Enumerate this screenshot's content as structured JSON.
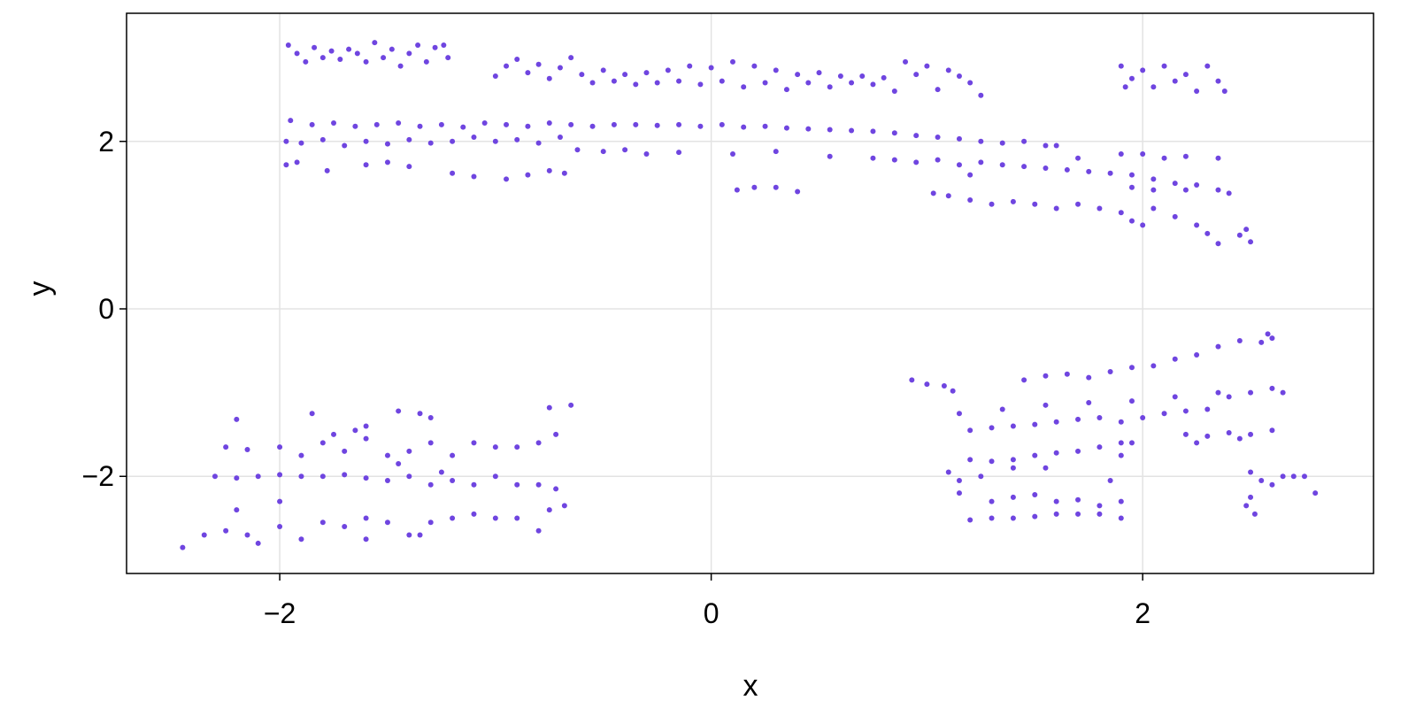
{
  "chart_data": {
    "type": "scatter",
    "title": "",
    "xlabel": "x",
    "ylabel": "y",
    "xlim": [
      -2.71,
      3.07
    ],
    "ylim": [
      -3.16,
      3.53
    ],
    "xticks": [
      -2,
      0,
      2
    ],
    "yticks": [
      -2,
      0,
      2
    ],
    "xtick_labels": [
      "−2",
      "0",
      "2"
    ],
    "ytick_labels": [
      "−2",
      "0",
      "2"
    ],
    "grid": true,
    "marker_color": "#6f45e0",
    "points": [
      [
        -1.96,
        3.15
      ],
      [
        -1.92,
        3.05
      ],
      [
        -1.88,
        2.95
      ],
      [
        -1.84,
        3.12
      ],
      [
        -1.8,
        3.0
      ],
      [
        -1.76,
        3.08
      ],
      [
        -1.72,
        2.98
      ],
      [
        -1.68,
        3.1
      ],
      [
        -1.64,
        3.05
      ],
      [
        -1.6,
        2.95
      ],
      [
        -1.56,
        3.18
      ],
      [
        -1.52,
        3.0
      ],
      [
        -1.48,
        3.1
      ],
      [
        -1.44,
        2.9
      ],
      [
        -1.4,
        3.05
      ],
      [
        -1.36,
        3.15
      ],
      [
        -1.32,
        2.95
      ],
      [
        -1.28,
        3.12
      ],
      [
        -1.24,
        3.15
      ],
      [
        -1.22,
        3.0
      ],
      [
        -1.0,
        2.78
      ],
      [
        -0.95,
        2.9
      ],
      [
        -0.9,
        2.98
      ],
      [
        -0.85,
        2.82
      ],
      [
        -0.8,
        2.92
      ],
      [
        -0.75,
        2.75
      ],
      [
        -0.7,
        2.88
      ],
      [
        -0.65,
        3.0
      ],
      [
        -0.6,
        2.8
      ],
      [
        -0.55,
        2.7
      ],
      [
        -0.5,
        2.85
      ],
      [
        -0.45,
        2.72
      ],
      [
        -0.4,
        2.8
      ],
      [
        -0.35,
        2.68
      ],
      [
        -0.3,
        2.82
      ],
      [
        -0.25,
        2.7
      ],
      [
        -0.2,
        2.85
      ],
      [
        -0.15,
        2.72
      ],
      [
        -0.1,
        2.9
      ],
      [
        -0.05,
        2.68
      ],
      [
        0.0,
        2.88
      ],
      [
        0.05,
        2.72
      ],
      [
        0.1,
        2.95
      ],
      [
        0.15,
        2.65
      ],
      [
        0.2,
        2.9
      ],
      [
        0.25,
        2.7
      ],
      [
        0.3,
        2.85
      ],
      [
        0.35,
        2.62
      ],
      [
        0.4,
        2.8
      ],
      [
        0.45,
        2.7
      ],
      [
        0.5,
        2.82
      ],
      [
        0.55,
        2.65
      ],
      [
        0.6,
        2.78
      ],
      [
        0.65,
        2.7
      ],
      [
        0.7,
        2.78
      ],
      [
        0.75,
        2.68
      ],
      [
        0.8,
        2.76
      ],
      [
        0.85,
        2.6
      ],
      [
        0.9,
        2.95
      ],
      [
        0.95,
        2.8
      ],
      [
        1.0,
        2.9
      ],
      [
        1.05,
        2.62
      ],
      [
        1.1,
        2.85
      ],
      [
        1.15,
        2.78
      ],
      [
        1.2,
        2.7
      ],
      [
        1.25,
        2.55
      ],
      [
        1.9,
        2.9
      ],
      [
        1.95,
        2.75
      ],
      [
        2.0,
        2.85
      ],
      [
        2.05,
        2.65
      ],
      [
        2.1,
        2.9
      ],
      [
        2.15,
        2.72
      ],
      [
        2.2,
        2.8
      ],
      [
        2.25,
        2.6
      ],
      [
        2.3,
        2.9
      ],
      [
        2.35,
        2.72
      ],
      [
        2.38,
        2.6
      ],
      [
        1.92,
        2.65
      ],
      [
        -1.95,
        2.25
      ],
      [
        -1.85,
        2.2
      ],
      [
        -1.75,
        2.22
      ],
      [
        -1.65,
        2.18
      ],
      [
        -1.55,
        2.2
      ],
      [
        -1.45,
        2.22
      ],
      [
        -1.35,
        2.18
      ],
      [
        -1.25,
        2.2
      ],
      [
        -1.15,
        2.17
      ],
      [
        -1.05,
        2.22
      ],
      [
        -0.95,
        2.2
      ],
      [
        -0.85,
        2.18
      ],
      [
        -0.75,
        2.22
      ],
      [
        -0.65,
        2.2
      ],
      [
        -0.55,
        2.18
      ],
      [
        -0.45,
        2.2
      ],
      [
        -0.35,
        2.2
      ],
      [
        -0.25,
        2.19
      ],
      [
        -0.15,
        2.2
      ],
      [
        -0.05,
        2.18
      ],
      [
        0.05,
        2.2
      ],
      [
        0.15,
        2.17
      ],
      [
        0.25,
        2.18
      ],
      [
        0.35,
        2.16
      ],
      [
        0.45,
        2.15
      ],
      [
        0.55,
        2.14
      ],
      [
        0.65,
        2.13
      ],
      [
        0.75,
        2.12
      ],
      [
        0.85,
        2.1
      ],
      [
        0.95,
        2.07
      ],
      [
        1.05,
        2.05
      ],
      [
        1.15,
        2.03
      ],
      [
        1.25,
        2.0
      ],
      [
        1.35,
        1.98
      ],
      [
        1.45,
        2.0
      ],
      [
        1.55,
        1.95
      ],
      [
        -1.97,
        2.0
      ],
      [
        -1.9,
        1.98
      ],
      [
        -1.8,
        2.02
      ],
      [
        -1.7,
        1.95
      ],
      [
        -1.6,
        2.0
      ],
      [
        -1.5,
        1.97
      ],
      [
        -1.4,
        2.02
      ],
      [
        -1.3,
        1.98
      ],
      [
        -1.2,
        2.0
      ],
      [
        -1.1,
        2.05
      ],
      [
        -1.0,
        2.0
      ],
      [
        -0.9,
        2.02
      ],
      [
        -0.8,
        1.98
      ],
      [
        -0.7,
        2.05
      ],
      [
        -0.62,
        1.9
      ],
      [
        -0.5,
        1.88
      ],
      [
        -0.4,
        1.9
      ],
      [
        -0.3,
        1.85
      ],
      [
        -0.15,
        1.87
      ],
      [
        0.1,
        1.85
      ],
      [
        0.3,
        1.88
      ],
      [
        0.55,
        1.82
      ],
      [
        -1.97,
        1.72
      ],
      [
        -1.92,
        1.75
      ],
      [
        -1.78,
        1.65
      ],
      [
        -1.6,
        1.72
      ],
      [
        -1.5,
        1.75
      ],
      [
        -1.4,
        1.7
      ],
      [
        -1.2,
        1.62
      ],
      [
        -1.1,
        1.58
      ],
      [
        -0.95,
        1.55
      ],
      [
        -0.85,
        1.6
      ],
      [
        -0.75,
        1.65
      ],
      [
        -0.68,
        1.62
      ],
      [
        0.12,
        1.42
      ],
      [
        0.2,
        1.45
      ],
      [
        0.3,
        1.45
      ],
      [
        0.4,
        1.4
      ],
      [
        0.75,
        1.8
      ],
      [
        0.85,
        1.78
      ],
      [
        0.95,
        1.75
      ],
      [
        1.05,
        1.78
      ],
      [
        1.15,
        1.72
      ],
      [
        1.25,
        1.75
      ],
      [
        1.35,
        1.72
      ],
      [
        1.45,
        1.7
      ],
      [
        1.55,
        1.68
      ],
      [
        1.65,
        1.66
      ],
      [
        1.75,
        1.64
      ],
      [
        1.85,
        1.62
      ],
      [
        1.95,
        1.6
      ],
      [
        2.05,
        1.55
      ],
      [
        2.15,
        1.5
      ],
      [
        2.25,
        1.48
      ],
      [
        2.35,
        1.42
      ],
      [
        2.4,
        1.38
      ],
      [
        1.9,
        1.85
      ],
      [
        2.0,
        1.85
      ],
      [
        2.1,
        1.8
      ],
      [
        2.2,
        1.82
      ],
      [
        2.35,
        1.8
      ],
      [
        1.95,
        1.45
      ],
      [
        2.05,
        1.42
      ],
      [
        2.2,
        1.42
      ],
      [
        1.6,
        1.95
      ],
      [
        1.7,
        1.8
      ],
      [
        1.2,
        1.6
      ],
      [
        1.03,
        1.38
      ],
      [
        1.1,
        1.35
      ],
      [
        1.2,
        1.3
      ],
      [
        1.3,
        1.25
      ],
      [
        1.4,
        1.28
      ],
      [
        1.5,
        1.25
      ],
      [
        1.6,
        1.2
      ],
      [
        1.7,
        1.25
      ],
      [
        1.8,
        1.2
      ],
      [
        1.9,
        1.15
      ],
      [
        1.95,
        1.05
      ],
      [
        2.0,
        1.0
      ],
      [
        2.05,
        1.2
      ],
      [
        2.15,
        1.1
      ],
      [
        2.25,
        1.0
      ],
      [
        2.3,
        0.9
      ],
      [
        2.35,
        0.78
      ],
      [
        2.45,
        0.88
      ],
      [
        2.5,
        0.8
      ],
      [
        2.48,
        0.95
      ],
      [
        -2.25,
        -1.65
      ],
      [
        -2.15,
        -1.68
      ],
      [
        -2.0,
        -1.65
      ],
      [
        -1.9,
        -1.75
      ],
      [
        -1.8,
        -1.6
      ],
      [
        -1.7,
        -1.7
      ],
      [
        -1.6,
        -1.55
      ],
      [
        -1.5,
        -1.75
      ],
      [
        -1.4,
        -1.7
      ],
      [
        -1.3,
        -1.6
      ],
      [
        -1.2,
        -1.75
      ],
      [
        -1.1,
        -1.6
      ],
      [
        -1.0,
        -1.65
      ],
      [
        -0.9,
        -1.65
      ],
      [
        -0.8,
        -1.6
      ],
      [
        -0.72,
        -1.5
      ],
      [
        -2.2,
        -1.32
      ],
      [
        -1.85,
        -1.25
      ],
      [
        -1.6,
        -1.4
      ],
      [
        -1.45,
        -1.22
      ],
      [
        -1.35,
        -1.25
      ],
      [
        -1.3,
        -1.3
      ],
      [
        -0.75,
        -1.18
      ],
      [
        -0.65,
        -1.15
      ],
      [
        -1.75,
        -1.5
      ],
      [
        -1.65,
        -1.45
      ],
      [
        -2.3,
        -2.0
      ],
      [
        -2.2,
        -2.02
      ],
      [
        -2.1,
        -2.0
      ],
      [
        -2.0,
        -1.98
      ],
      [
        -1.9,
        -2.0
      ],
      [
        -1.8,
        -2.0
      ],
      [
        -1.7,
        -1.98
      ],
      [
        -1.6,
        -2.02
      ],
      [
        -1.5,
        -2.05
      ],
      [
        -1.4,
        -2.0
      ],
      [
        -1.3,
        -2.1
      ],
      [
        -1.2,
        -2.05
      ],
      [
        -1.1,
        -2.1
      ],
      [
        -1.0,
        -2.0
      ],
      [
        -0.9,
        -2.1
      ],
      [
        -0.8,
        -2.1
      ],
      [
        -0.72,
        -2.15
      ],
      [
        -1.45,
        -1.85
      ],
      [
        -1.25,
        -1.95
      ],
      [
        -2.45,
        -2.85
      ],
      [
        -2.35,
        -2.7
      ],
      [
        -2.25,
        -2.65
      ],
      [
        -2.15,
        -2.7
      ],
      [
        -2.1,
        -2.8
      ],
      [
        -2.0,
        -2.6
      ],
      [
        -1.9,
        -2.75
      ],
      [
        -1.8,
        -2.55
      ],
      [
        -1.7,
        -2.6
      ],
      [
        -1.6,
        -2.5
      ],
      [
        -1.5,
        -2.55
      ],
      [
        -1.4,
        -2.7
      ],
      [
        -1.3,
        -2.55
      ],
      [
        -1.2,
        -2.5
      ],
      [
        -1.1,
        -2.45
      ],
      [
        -1.0,
        -2.5
      ],
      [
        -0.9,
        -2.5
      ],
      [
        -0.8,
        -2.65
      ],
      [
        -0.75,
        -2.4
      ],
      [
        -0.68,
        -2.35
      ],
      [
        -1.35,
        -2.7
      ],
      [
        -1.6,
        -2.75
      ],
      [
        -2.2,
        -2.4
      ],
      [
        -2.0,
        -2.3
      ],
      [
        0.93,
        -0.85
      ],
      [
        1.0,
        -0.9
      ],
      [
        1.08,
        -0.92
      ],
      [
        1.12,
        -0.98
      ],
      [
        1.2,
        -1.45
      ],
      [
        1.3,
        -1.42
      ],
      [
        1.4,
        -1.4
      ],
      [
        1.5,
        -1.38
      ],
      [
        1.6,
        -1.35
      ],
      [
        1.7,
        -1.32
      ],
      [
        1.8,
        -1.3
      ],
      [
        1.9,
        -1.35
      ],
      [
        2.0,
        -1.3
      ],
      [
        2.1,
        -1.25
      ],
      [
        2.2,
        -1.22
      ],
      [
        2.3,
        -1.2
      ],
      [
        2.4,
        -1.05
      ],
      [
        2.5,
        -1.0
      ],
      [
        2.6,
        -0.95
      ],
      [
        2.65,
        -1.0
      ],
      [
        1.15,
        -1.25
      ],
      [
        1.35,
        -1.2
      ],
      [
        1.55,
        -1.15
      ],
      [
        1.75,
        -1.12
      ],
      [
        1.95,
        -1.1
      ],
      [
        2.15,
        -1.05
      ],
      [
        2.35,
        -1.0
      ],
      [
        1.45,
        -0.85
      ],
      [
        1.55,
        -0.8
      ],
      [
        1.65,
        -0.78
      ],
      [
        1.75,
        -0.82
      ],
      [
        1.85,
        -0.75
      ],
      [
        1.95,
        -0.7
      ],
      [
        2.05,
        -0.68
      ],
      [
        2.15,
        -0.6
      ],
      [
        2.25,
        -0.55
      ],
      [
        2.35,
        -0.45
      ],
      [
        2.45,
        -0.38
      ],
      [
        2.55,
        -0.4
      ],
      [
        2.58,
        -0.3
      ],
      [
        2.6,
        -0.35
      ],
      [
        1.2,
        -1.8
      ],
      [
        1.3,
        -1.82
      ],
      [
        1.4,
        -1.8
      ],
      [
        1.5,
        -1.75
      ],
      [
        1.6,
        -1.72
      ],
      [
        1.7,
        -1.7
      ],
      [
        1.8,
        -1.65
      ],
      [
        1.9,
        -1.6
      ],
      [
        1.95,
        -1.6
      ],
      [
        1.4,
        -1.9
      ],
      [
        1.55,
        -1.9
      ],
      [
        1.1,
        -1.95
      ],
      [
        1.15,
        -2.05
      ],
      [
        1.2,
        -2.52
      ],
      [
        1.3,
        -2.5
      ],
      [
        1.4,
        -2.5
      ],
      [
        1.5,
        -2.48
      ],
      [
        1.6,
        -2.45
      ],
      [
        1.7,
        -2.45
      ],
      [
        1.8,
        -2.45
      ],
      [
        1.9,
        -2.5
      ],
      [
        1.3,
        -2.3
      ],
      [
        1.4,
        -2.25
      ],
      [
        1.5,
        -2.22
      ],
      [
        1.6,
        -2.3
      ],
      [
        1.7,
        -2.28
      ],
      [
        1.8,
        -2.35
      ],
      [
        1.9,
        -2.3
      ],
      [
        1.25,
        -2.0
      ],
      [
        1.15,
        -2.2
      ],
      [
        1.85,
        -2.05
      ],
      [
        1.9,
        -1.75
      ],
      [
        2.2,
        -1.5
      ],
      [
        2.3,
        -1.52
      ],
      [
        2.4,
        -1.48
      ],
      [
        2.5,
        -1.5
      ],
      [
        2.6,
        -1.45
      ],
      [
        2.25,
        -1.6
      ],
      [
        2.45,
        -1.55
      ],
      [
        2.5,
        -1.95
      ],
      [
        2.55,
        -2.05
      ],
      [
        2.6,
        -2.1
      ],
      [
        2.65,
        -2.0
      ],
      [
        2.7,
        -2.0
      ],
      [
        2.75,
        -2.0
      ],
      [
        2.8,
        -2.2
      ],
      [
        2.5,
        -2.25
      ],
      [
        2.52,
        -2.45
      ],
      [
        2.48,
        -2.35
      ]
    ]
  }
}
